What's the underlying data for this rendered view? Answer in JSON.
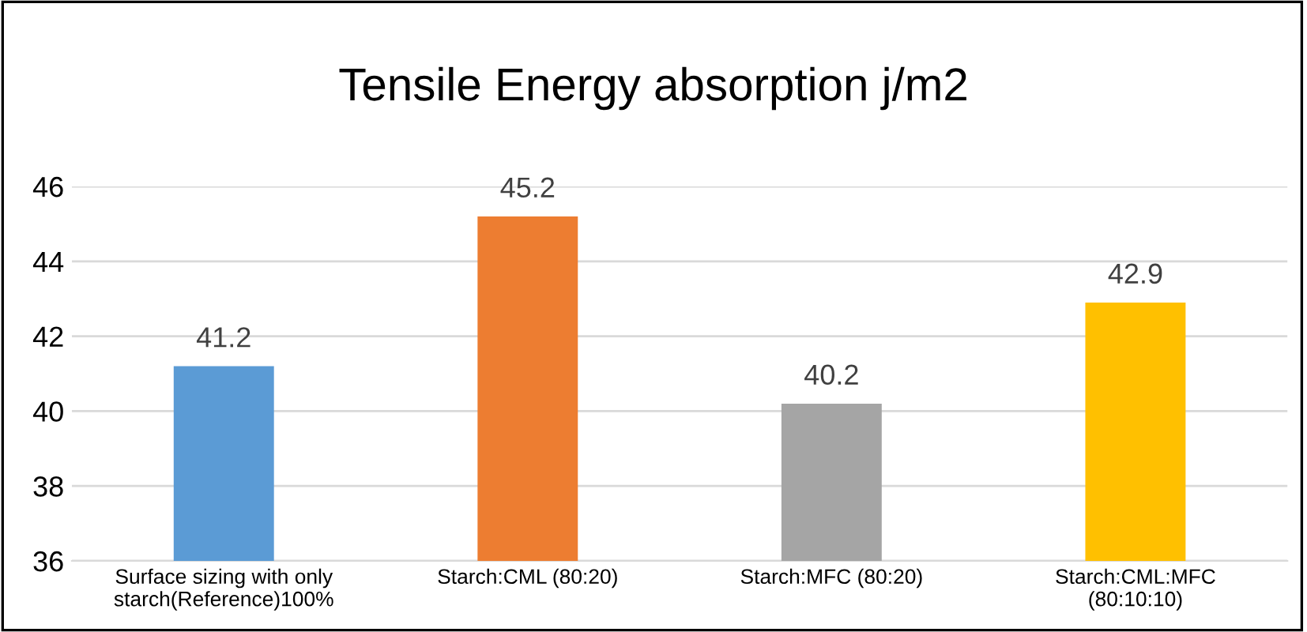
{
  "chart_data": {
    "type": "bar",
    "title": "Tensile Energy absorption j/m2",
    "categories": [
      "Surface sizing with only\nstarch(Reference)100%",
      "Starch:CML (80:20)",
      "Starch:MFC (80:20)",
      "Starch:CML:MFC\n(80:10:10)"
    ],
    "values": [
      41.2,
      45.2,
      40.2,
      42.9
    ],
    "colors": [
      "#5b9bd5",
      "#ed7d31",
      "#a5a5a5",
      "#ffc000"
    ],
    "ylim": [
      36,
      46
    ],
    "yticks": [
      36,
      38,
      40,
      42,
      44,
      46
    ],
    "grid": "y",
    "data_labels": true
  }
}
